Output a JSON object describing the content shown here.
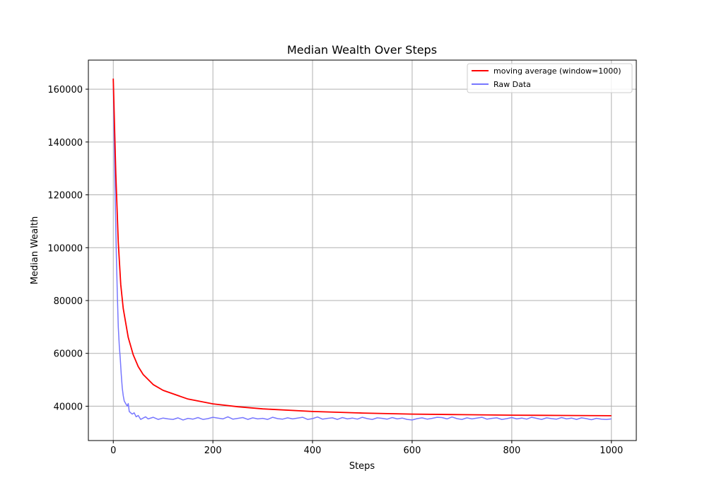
{
  "chart_data": {
    "type": "line",
    "title": "Median Wealth Over Steps",
    "xlabel": "Steps",
    "ylabel": "Median Wealth",
    "xlim": [
      -50,
      1050
    ],
    "ylim": [
      27000,
      171000
    ],
    "xticks": [
      0,
      200,
      400,
      600,
      800,
      1000
    ],
    "yticks": [
      40000,
      60000,
      80000,
      100000,
      120000,
      140000,
      160000
    ],
    "grid": true,
    "legend": "top-right",
    "series": [
      {
        "name": "moving average (window=1000)",
        "color": "#ff0000",
        "x": [
          0,
          2,
          5,
          10,
          15,
          20,
          30,
          40,
          50,
          60,
          80,
          100,
          150,
          200,
          250,
          300,
          400,
          500,
          600,
          700,
          800,
          900,
          1000
        ],
        "y": [
          164000,
          150000,
          128000,
          102000,
          86000,
          77000,
          66000,
          59500,
          55000,
          52000,
          48200,
          46000,
          42700,
          40900,
          39800,
          39000,
          38000,
          37400,
          37000,
          36800,
          36600,
          36500,
          36400
        ]
      },
      {
        "name": "Raw Data",
        "color": "#7777ff",
        "x": [
          0,
          2,
          4,
          6,
          8,
          10,
          12,
          14,
          16,
          18,
          20,
          22,
          25,
          28,
          30,
          32,
          35,
          38,
          42,
          46,
          50,
          55,
          60,
          65,
          70,
          80,
          90,
          100,
          110,
          120,
          130,
          140,
          150,
          160,
          170,
          180,
          190,
          200,
          210,
          220,
          230,
          240,
          250,
          260,
          270,
          280,
          290,
          300,
          310,
          320,
          330,
          340,
          350,
          360,
          370,
          380,
          390,
          400,
          410,
          420,
          430,
          440,
          450,
          460,
          470,
          480,
          490,
          500,
          510,
          520,
          530,
          540,
          550,
          560,
          570,
          580,
          590,
          600,
          610,
          620,
          630,
          640,
          650,
          660,
          670,
          680,
          690,
          700,
          710,
          720,
          730,
          740,
          750,
          760,
          770,
          780,
          790,
          800,
          810,
          820,
          830,
          840,
          850,
          860,
          870,
          880,
          890,
          900,
          910,
          920,
          930,
          940,
          950,
          960,
          970,
          980,
          990,
          1000
        ],
        "y": [
          164000,
          140000,
          118000,
          98000,
          83000,
          70000,
          63000,
          58000,
          52000,
          47000,
          44000,
          42000,
          41000,
          40000,
          41000,
          38000,
          37500,
          37000,
          37500,
          36000,
          36500,
          35000,
          35500,
          36000,
          35200,
          35800,
          35000,
          35500,
          35200,
          35000,
          35600,
          34800,
          35400,
          35100,
          35700,
          35000,
          35300,
          35800,
          35500,
          35200,
          36000,
          35100,
          35400,
          35700,
          35000,
          35600,
          35200,
          35400,
          35000,
          35800,
          35300,
          35100,
          35600,
          35200,
          35500,
          35800,
          35000,
          35300,
          35900,
          35100,
          35400,
          35600,
          35000,
          35700,
          35200,
          35500,
          35100,
          35800,
          35300,
          35000,
          35600,
          35400,
          35100,
          35700,
          35200,
          35500,
          35000,
          34800,
          35300,
          35600,
          35100,
          35400,
          35800,
          35700,
          35200,
          35900,
          35300,
          35000,
          35600,
          35200,
          35500,
          35800,
          35100,
          35400,
          35600,
          35000,
          35300,
          35700,
          35200,
          35500,
          35100,
          35800,
          35400,
          35000,
          35600,
          35300,
          35100,
          35700,
          35200,
          35500,
          35000,
          35600,
          35300,
          34900,
          35400,
          35100,
          35000,
          35200
        ]
      }
    ]
  }
}
